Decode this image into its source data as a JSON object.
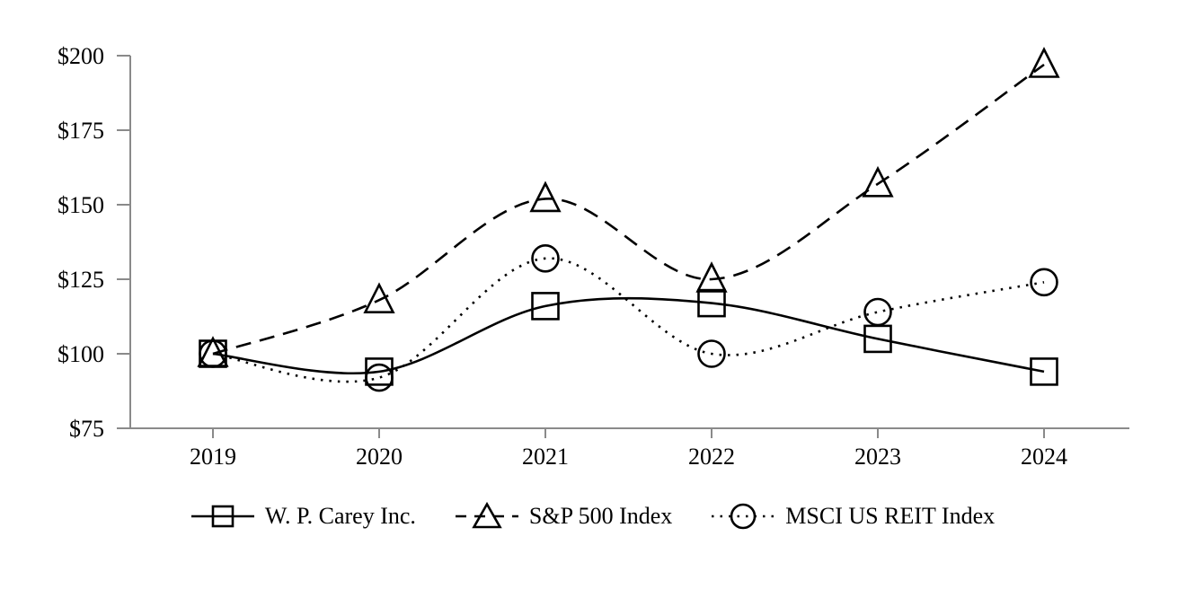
{
  "chart_data": {
    "type": "line",
    "title": "",
    "xlabel": "",
    "ylabel": "",
    "categories": [
      "2019",
      "2020",
      "2021",
      "2022",
      "2023",
      "2024"
    ],
    "series": [
      {
        "name": "W. P. Carey Inc.",
        "key": "wpc",
        "marker": "square",
        "line_style": "solid",
        "values": [
          100,
          94,
          116,
          117,
          105,
          94
        ]
      },
      {
        "name": "S&P 500 Index",
        "key": "sp500",
        "marker": "triangle",
        "line_style": "dashed",
        "values": [
          100,
          118,
          152,
          125,
          157,
          197
        ]
      },
      {
        "name": "MSCI US REIT Index",
        "key": "msci",
        "marker": "circle",
        "line_style": "dotted",
        "values": [
          100,
          92,
          132,
          100,
          114,
          124
        ]
      }
    ],
    "ylim": [
      75,
      200
    ],
    "ytick_step": 25,
    "ytick_labels": [
      "$75",
      "$100",
      "$125",
      "$150",
      "$175",
      "$200"
    ],
    "grid": false,
    "legend_position": "bottom",
    "colors": {
      "line": "#000000",
      "axis": "#8a8a8a",
      "text": "#000000",
      "background": "#ffffff"
    }
  }
}
